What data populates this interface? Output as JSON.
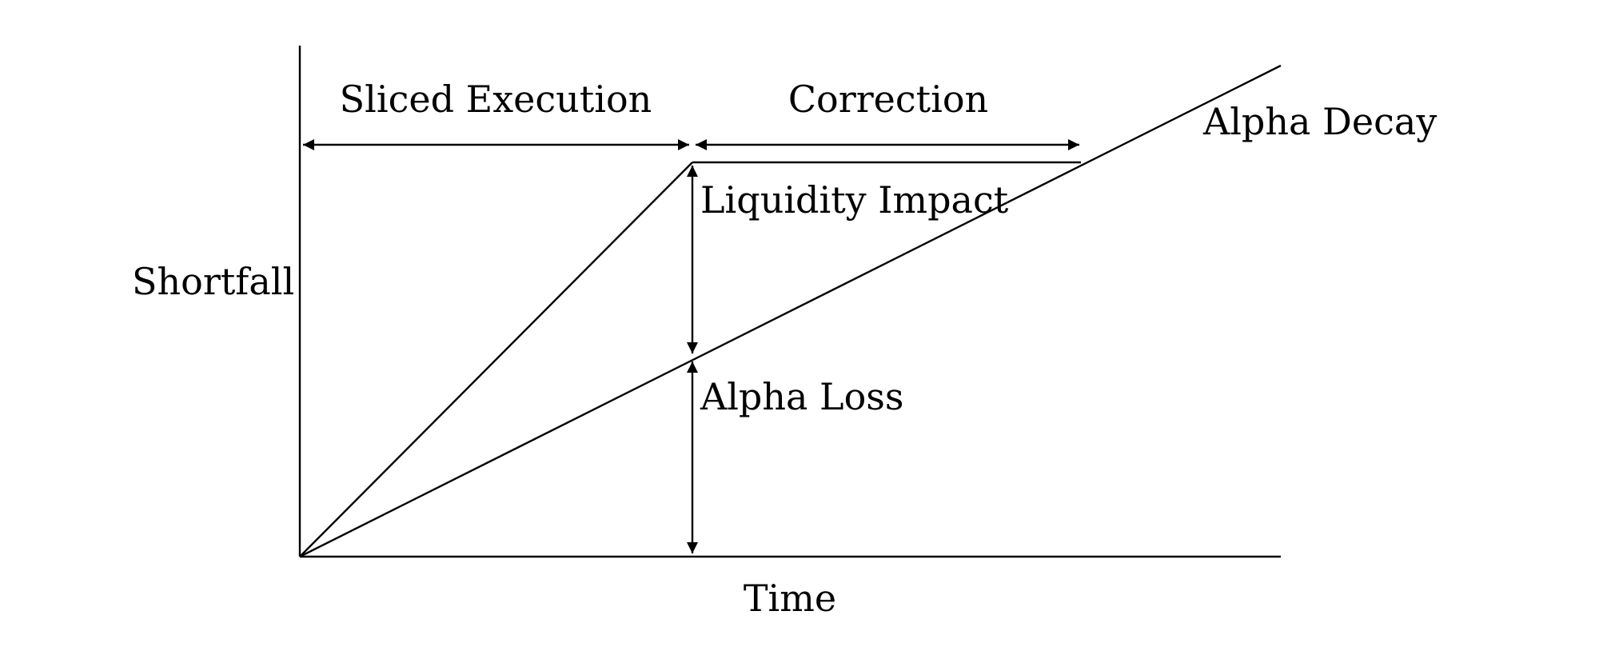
{
  "diagram": {
    "labels": {
      "y_axis": "Shortfall",
      "x_axis": "Time",
      "sliced_execution": "Sliced Execution",
      "correction": "Correction",
      "alpha_decay": "Alpha Decay",
      "liquidity_impact": "Liquidity Impact",
      "alpha_loss": "Alpha Loss"
    },
    "colors": {
      "ink": "#000000",
      "background": "#ffffff"
    }
  }
}
